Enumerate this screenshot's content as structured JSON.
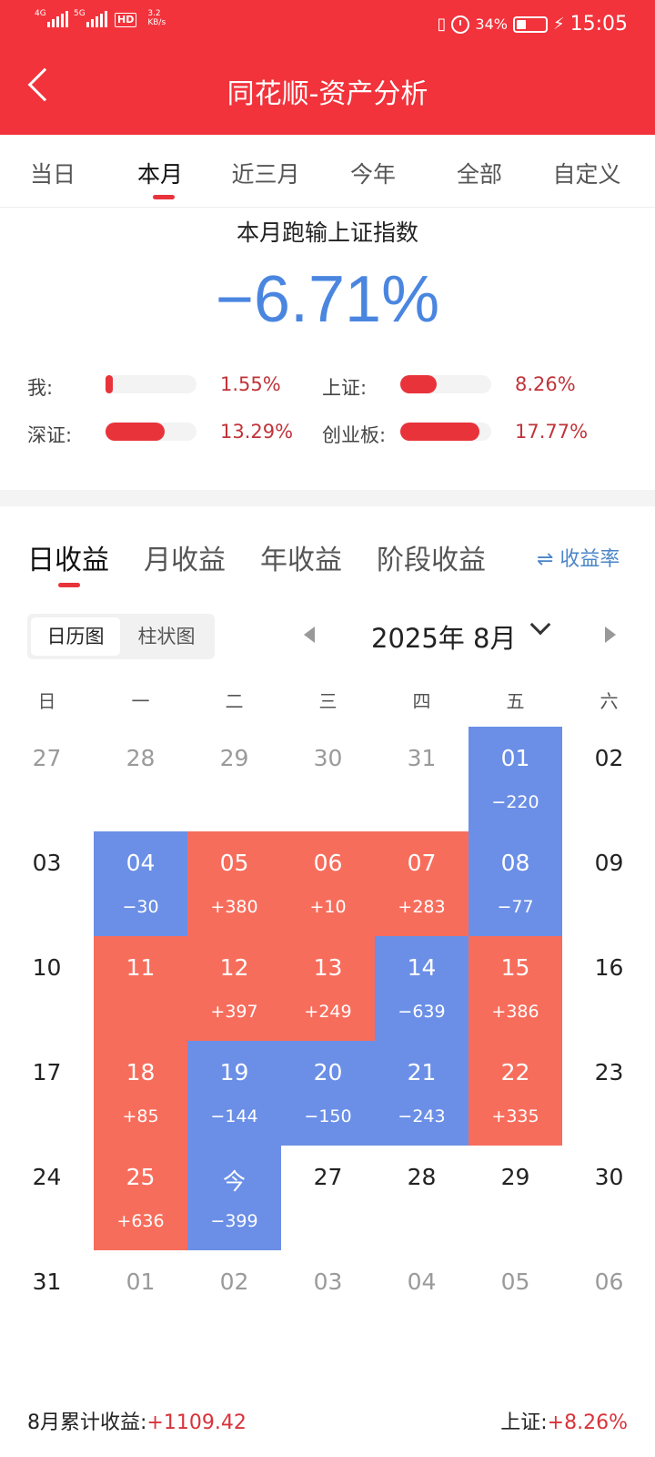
{
  "status_bar": {
    "signal1": "4G",
    "signal2": "5G",
    "hd": "HD",
    "speed_value": "3.2",
    "speed_unit": "KB/s",
    "battery_percent": "34%",
    "battery_level": 0.34,
    "time": "15:05"
  },
  "header": {
    "title": "同花顺-资产分析"
  },
  "period_tabs": [
    {
      "label": "当日",
      "active": false
    },
    {
      "label": "本月",
      "active": true
    },
    {
      "label": "近三月",
      "active": false
    },
    {
      "label": "今年",
      "active": false
    },
    {
      "label": "全部",
      "active": false
    },
    {
      "label": "自定义",
      "active": false
    }
  ],
  "summary": {
    "title": "本月跑输上证指数",
    "value": "−6.71%",
    "comparisons": [
      {
        "label": "我:",
        "value": "1.55%",
        "level": 0.08
      },
      {
        "label": "上证:",
        "value": "8.26%",
        "level": 0.4
      },
      {
        "label": "深证:",
        "value": "13.29%",
        "level": 0.65
      },
      {
        "label": "创业板:",
        "value": "17.77%",
        "level": 0.87
      }
    ]
  },
  "return_tabs": [
    {
      "label": "日收益",
      "active": true
    },
    {
      "label": "月收益",
      "active": false
    },
    {
      "label": "年收益",
      "active": false
    },
    {
      "label": "阶段收益",
      "active": false
    }
  ],
  "rate_toggle": {
    "icon": "swap-icon",
    "label": "⇌ 收益率"
  },
  "view_toggle": {
    "calendar": "日历图",
    "bar": "柱状图"
  },
  "month": {
    "label": "2025年 8月"
  },
  "weekdays": [
    "日",
    "一",
    "二",
    "三",
    "四",
    "五",
    "六"
  ],
  "calendar": [
    [
      {
        "d": "27",
        "t": "other"
      },
      {
        "d": "28",
        "t": "other"
      },
      {
        "d": "29",
        "t": "other"
      },
      {
        "d": "30",
        "t": "other"
      },
      {
        "d": "31",
        "t": "other"
      },
      {
        "d": "01",
        "t": "neg",
        "v": "−220"
      },
      {
        "d": "02",
        "t": "cur"
      }
    ],
    [
      {
        "d": "03",
        "t": "cur"
      },
      {
        "d": "04",
        "t": "neg",
        "v": "−30"
      },
      {
        "d": "05",
        "t": "pos",
        "v": "+380"
      },
      {
        "d": "06",
        "t": "pos",
        "v": "+10"
      },
      {
        "d": "07",
        "t": "pos",
        "v": "+283"
      },
      {
        "d": "08",
        "t": "neg",
        "v": "−77"
      },
      {
        "d": "09",
        "t": "cur"
      }
    ],
    [
      {
        "d": "10",
        "t": "cur"
      },
      {
        "d": "11",
        "t": "pos",
        "v": ""
      },
      {
        "d": "12",
        "t": "pos",
        "v": "+397"
      },
      {
        "d": "13",
        "t": "pos",
        "v": "+249"
      },
      {
        "d": "14",
        "t": "neg",
        "v": "−639"
      },
      {
        "d": "15",
        "t": "pos",
        "v": "+386"
      },
      {
        "d": "16",
        "t": "cur"
      }
    ],
    [
      {
        "d": "17",
        "t": "cur"
      },
      {
        "d": "18",
        "t": "pos",
        "v": "+85"
      },
      {
        "d": "19",
        "t": "neg",
        "v": "−144"
      },
      {
        "d": "20",
        "t": "neg",
        "v": "−150"
      },
      {
        "d": "21",
        "t": "neg",
        "v": "−243"
      },
      {
        "d": "22",
        "t": "pos",
        "v": "+335"
      },
      {
        "d": "23",
        "t": "cur"
      }
    ],
    [
      {
        "d": "24",
        "t": "cur"
      },
      {
        "d": "25",
        "t": "pos",
        "v": "+636"
      },
      {
        "d": "今",
        "t": "neg",
        "v": "−399"
      },
      {
        "d": "27",
        "t": "cur"
      },
      {
        "d": "28",
        "t": "cur"
      },
      {
        "d": "29",
        "t": "cur"
      },
      {
        "d": "30",
        "t": "cur"
      }
    ],
    [
      {
        "d": "31",
        "t": "cur"
      },
      {
        "d": "01",
        "t": "other"
      },
      {
        "d": "02",
        "t": "other"
      },
      {
        "d": "03",
        "t": "other"
      },
      {
        "d": "04",
        "t": "other"
      },
      {
        "d": "05",
        "t": "other"
      },
      {
        "d": "06",
        "t": "other"
      }
    ]
  ],
  "footer": {
    "cum_label": "8月累计收益:",
    "cum_value": "+1109.42",
    "index_label": "上证:",
    "index_value": "+8.26%"
  },
  "colors": {
    "header_red": "#f2333b",
    "gain": "#f76d5c",
    "loss": "#6b8fe6",
    "summary_blue": "#4a86e0"
  }
}
